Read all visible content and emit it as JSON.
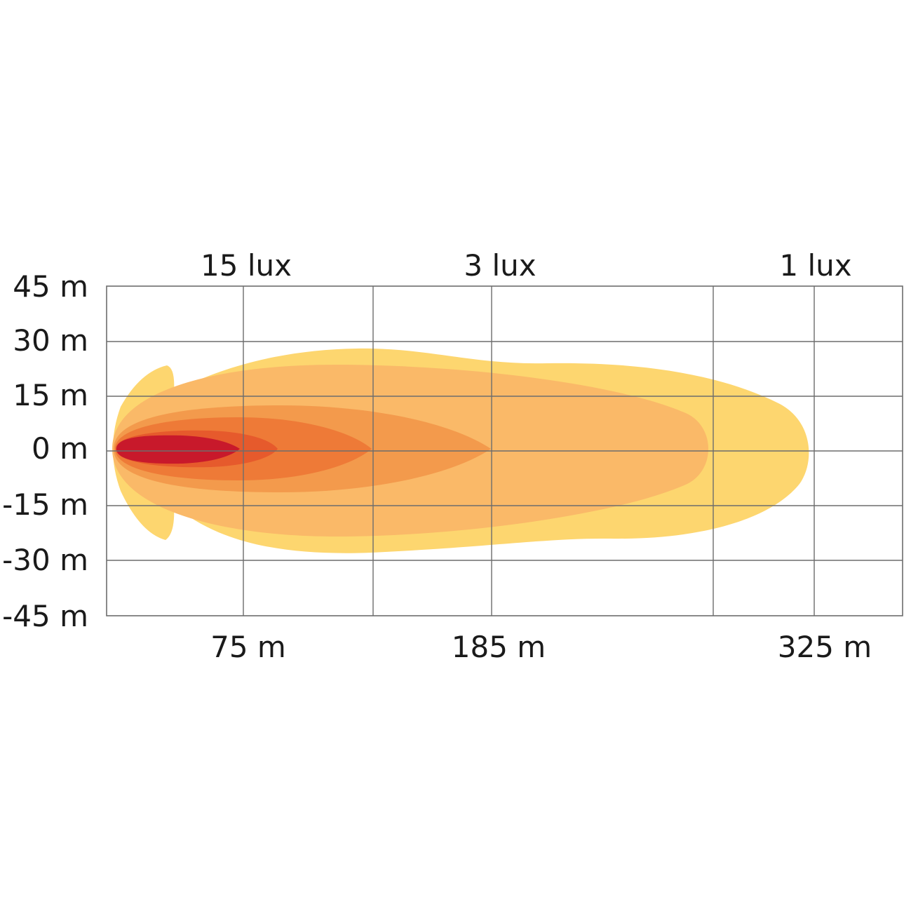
{
  "chart_data": {
    "type": "area",
    "title": "",
    "xlabel": "",
    "ylabel": "",
    "y_ticks": [
      "45 m",
      "30 m",
      "15 m",
      "0 m",
      "-15 m",
      "-30 m",
      "-45 m"
    ],
    "x_ticks": [
      "75 m",
      "185 m",
      "325 m"
    ],
    "lux_labels": [
      "15 lux",
      "3 lux",
      "1 lux"
    ],
    "ylim": [
      -45,
      45
    ],
    "grid": true,
    "series": [
      {
        "name": "1 lux",
        "color": "#fdd66f",
        "reach_m": 325,
        "half_width_m": 28
      },
      {
        "name": "3 lux",
        "color": "#fab968",
        "reach_m": 270,
        "half_width_m": 24
      },
      {
        "name": "15 lux",
        "color": "#f39a4c",
        "reach_m": 185,
        "half_width_m": 13
      },
      {
        "name": "",
        "color": "#ee7a37",
        "reach_m": 120,
        "half_width_m": 10
      },
      {
        "name": "",
        "color": "#e65a2c",
        "reach_m": 90,
        "half_width_m": 5
      },
      {
        "name": "",
        "color": "#c8192b",
        "reach_m": 70,
        "half_width_m": 3
      }
    ]
  }
}
